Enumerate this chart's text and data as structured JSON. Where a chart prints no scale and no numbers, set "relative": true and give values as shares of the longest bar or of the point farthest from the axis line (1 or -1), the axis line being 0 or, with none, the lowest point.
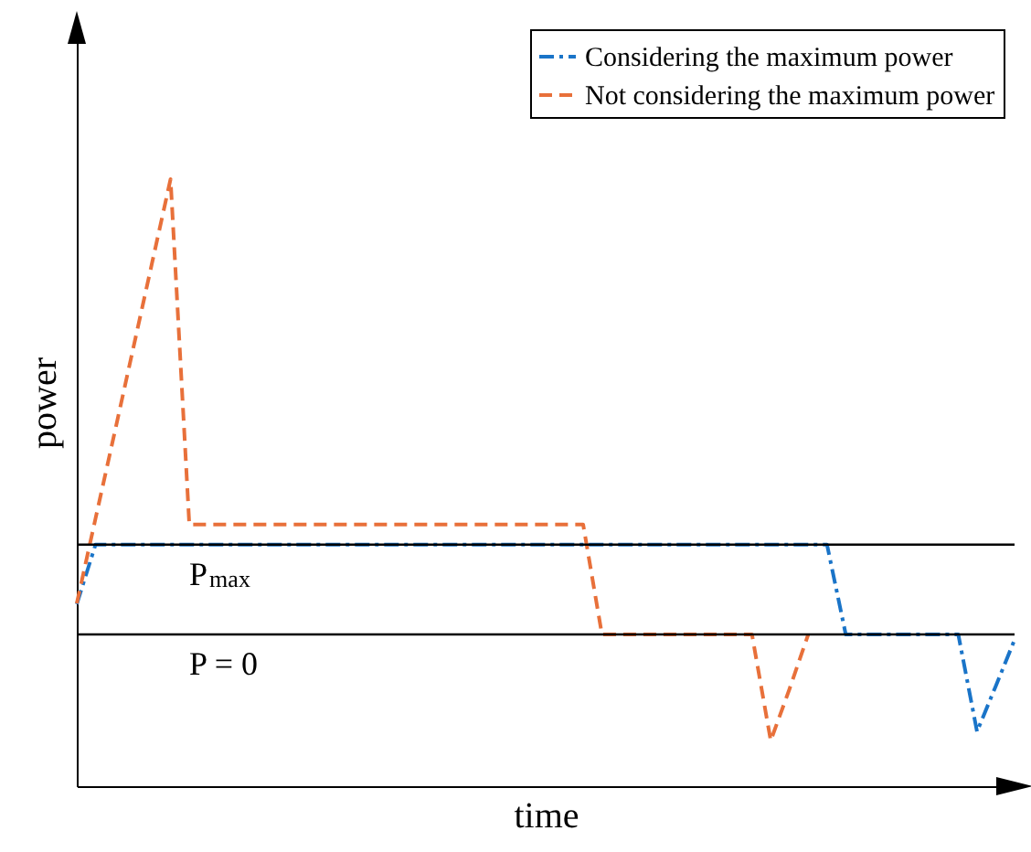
{
  "chart_data": {
    "type": "line",
    "relative": true,
    "xlabel": "time",
    "ylabel": "power",
    "tick_labels": false,
    "legend": "top right",
    "grid": false,
    "categories": [
      null,
      null,
      null,
      null,
      null,
      null,
      null,
      null,
      null,
      null,
      null,
      null,
      null,
      null,
      null,
      null,
      null,
      null,
      null,
      null,
      null,
      null,
      null,
      null,
      null,
      null,
      null,
      null,
      null,
      null,
      null,
      null,
      null,
      null,
      null,
      null,
      null,
      null,
      null,
      null,
      null,
      null,
      null,
      null,
      null,
      null,
      null,
      null,
      null,
      null,
      null
    ],
    "series": [
      {
        "name": "Considering the maximum power",
        "color": "#1a74c8",
        "line_style": "dashdot",
        "values": [
          0.3,
          0.398,
          0.398,
          0.398,
          0.398,
          0.398,
          0.398,
          0.398,
          0.398,
          0.398,
          0.398,
          0.398,
          0.398,
          0.398,
          0.398,
          0.398,
          0.398,
          0.398,
          0.398,
          0.398,
          0.398,
          0.398,
          0.398,
          0.398,
          0.398,
          0.398,
          0.398,
          0.398,
          0.398,
          0.398,
          0.398,
          0.398,
          0.398,
          0.398,
          0.398,
          0.398,
          0.398,
          0.398,
          0.398,
          0.398,
          0.398,
          0.25,
          0.25,
          0.25,
          0.25,
          0.25,
          0.25,
          0.25,
          0.09,
          0.165,
          0.241
        ]
      },
      {
        "name": "Not considering the maximum power",
        "color": "#e8703a",
        "line_style": "dashed",
        "values": [
          0.301,
          0.441,
          0.58,
          0.72,
          0.86,
          1,
          0.431,
          0.431,
          0.431,
          0.431,
          0.431,
          0.431,
          0.431,
          0.431,
          0.431,
          0.431,
          0.431,
          0.431,
          0.431,
          0.431,
          0.431,
          0.431,
          0.431,
          0.431,
          0.431,
          0.431,
          0.431,
          0.431,
          0.25,
          0.25,
          0.25,
          0.25,
          0.25,
          0.25,
          0.25,
          0.25,
          0.25,
          0.075,
          0.16,
          0.25,
          null,
          null,
          null,
          null,
          null,
          null,
          null,
          null,
          null,
          null,
          null
        ]
      }
    ],
    "ref_lines": [
      {
        "axis": "y",
        "value": 0.398,
        "label": "P$_{max}$"
      },
      {
        "axis": "y",
        "value": 0.25,
        "label": "P = 0"
      }
    ]
  }
}
